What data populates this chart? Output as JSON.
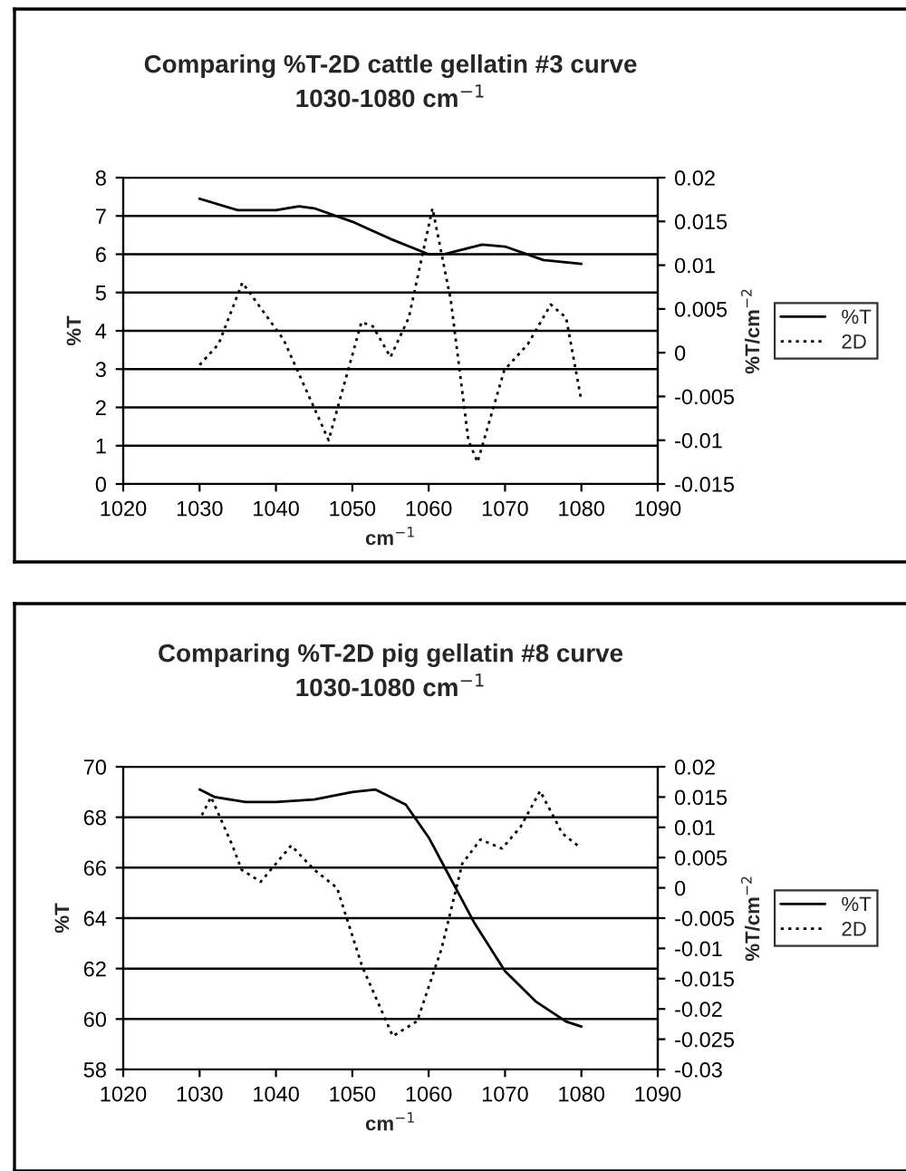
{
  "chart_data": [
    {
      "type": "line",
      "title": "Comparing %T-2D cattle gellatin #3 curve\n1030-1080 cm$^{−1}$",
      "xlabel": "cm$^{−1}$",
      "ylabel": "%T",
      "y2label": "%T/cm$^{−2}$",
      "xlim": [
        1020,
        1090
      ],
      "xticks": [
        1020,
        1030,
        1040,
        1050,
        1060,
        1070,
        1080,
        1090
      ],
      "ylim": [
        0,
        8
      ],
      "yticks": [
        0,
        1,
        2,
        3,
        4,
        5,
        6,
        7,
        8
      ],
      "y2lim": [
        -0.015,
        0.02
      ],
      "y2ticks": [
        -0.015,
        -0.01,
        -0.005,
        0,
        0.005,
        0.01,
        0.015,
        0.02
      ],
      "grid": "y",
      "legend": "right",
      "marker": "none",
      "series": [
        {
          "name": "%T",
          "color": "#000000",
          "line_style": "solid",
          "x": [
            1030,
            1035,
            1040,
            1043,
            1045,
            1050,
            1055,
            1060,
            1062,
            1067,
            1070,
            1075,
            1080
          ],
          "values": [
            7.45,
            7.15,
            7.15,
            7.25,
            7.2,
            6.85,
            6.4,
            6.0,
            6.0,
            6.25,
            6.2,
            5.85,
            5.75
          ]
        },
        {
          "name": "2D",
          "color": "#000000",
          "line_style": "dotted",
          "axis": "y2",
          "x": [
            1030,
            1032.5,
            1035.6,
            1041,
            1046.9,
            1051.2,
            1052.7,
            1055,
            1057.4,
            1060.5,
            1062.9,
            1065.2,
            1066.4,
            1069.9,
            1073,
            1076,
            1078,
            1080
          ],
          "values": [
            -0.0014,
            0.001,
            0.008,
            0.0015,
            -0.01,
            0.0035,
            0.003,
            -0.0005,
            0.004,
            0.0165,
            0.006,
            -0.01,
            -0.0125,
            -0.002,
            0.001,
            0.0055,
            0.004,
            -0.0055
          ]
        }
      ]
    },
    {
      "type": "line",
      "title": "Comparing %T-2D pig gellatin #8 curve\n1030-1080 cm$^{−1}$",
      "xlabel": "cm$^{−1}$",
      "ylabel": "%T",
      "y2label": "%T/cm$^{−2}$",
      "xlim": [
        1020,
        1090
      ],
      "xticks": [
        1020,
        1030,
        1040,
        1050,
        1060,
        1070,
        1080,
        1090
      ],
      "ylim": [
        58,
        70
      ],
      "yticks": [
        58,
        60,
        62,
        64,
        66,
        68,
        70
      ],
      "y2lim": [
        -0.03,
        0.02
      ],
      "y2ticks": [
        -0.03,
        -0.025,
        -0.02,
        -0.015,
        -0.01,
        -0.005,
        0,
        0.005,
        0.01,
        0.015,
        0.02
      ],
      "grid": "y",
      "legend": "right",
      "marker": "none",
      "series": [
        {
          "name": "%T",
          "color": "#000000",
          "line_style": "solid",
          "x": [
            1030,
            1032,
            1036,
            1040,
            1045,
            1050,
            1053,
            1057,
            1060,
            1063,
            1066,
            1070,
            1074,
            1078,
            1080
          ],
          "values": [
            69.1,
            68.8,
            68.6,
            68.6,
            68.7,
            69.0,
            69.1,
            68.5,
            67.2,
            65.5,
            63.8,
            61.9,
            60.7,
            59.9,
            59.7
          ]
        },
        {
          "name": "2D",
          "color": "#000000",
          "line_style": "dotted",
          "axis": "y2",
          "x": [
            1030.3,
            1031.5,
            1034.3,
            1035.5,
            1038,
            1042,
            1045,
            1048,
            1051.3,
            1055.3,
            1058.5,
            1061.7,
            1064.4,
            1066.8,
            1069.6,
            1072,
            1074.6,
            1077.5,
            1079.5
          ],
          "values": [
            0.012,
            0.015,
            0.007,
            0.003,
            0.001,
            0.007,
            0.003,
            0.0,
            -0.013,
            -0.0245,
            -0.022,
            -0.01,
            0.004,
            0.008,
            0.0065,
            0.01,
            0.016,
            0.009,
            0.007
          ]
        }
      ]
    }
  ]
}
